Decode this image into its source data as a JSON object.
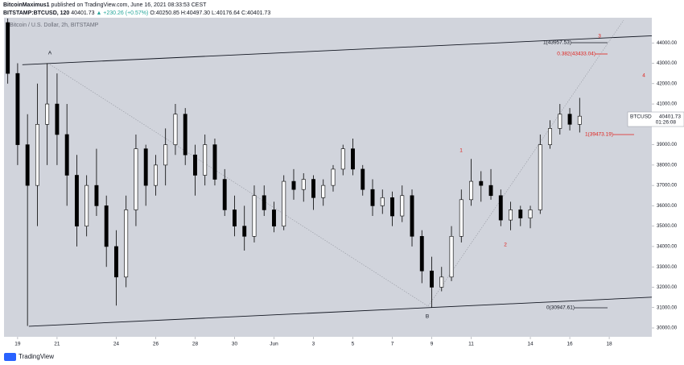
{
  "header": {
    "author": "BitcoinMaximus1",
    "published": "published on TradingView.com, June 16, 2021 08:33:53 CEST",
    "symbol": "BITSTAMP:BTCUSD, 120",
    "last": "40401.73",
    "change": "▲ +230.26 (+0.57%)",
    "open": "O:40250.85",
    "high": "H:40497.30",
    "low": "L:40176.64",
    "close": "C:40401.73"
  },
  "chart_data": {
    "type": "candlestick",
    "watermark": "Bitcoin / U.S. Dollar, 2h, BITSTAMP",
    "x": [
      -0.5,
      0,
      0.5,
      1,
      1.5,
      2,
      2.5,
      3,
      3.5,
      4,
      4.5,
      5,
      5.5,
      6,
      6.5,
      7,
      7.5,
      8,
      8.5,
      9,
      9.5,
      10,
      10.5,
      11,
      11.5,
      12,
      12.5,
      13,
      13.5,
      14,
      14.5,
      15,
      15.5,
      16,
      16.5,
      17,
      17.5,
      18,
      18.5,
      19,
      19.5,
      20,
      20.5,
      21,
      21.5,
      22,
      22.5,
      23,
      23.5,
      24,
      24.5,
      25,
      25.5,
      26,
      26.5,
      27,
      27.5,
      28,
      28.5
    ],
    "open": [
      45000,
      42500,
      39000,
      37000,
      40000,
      41000,
      39500,
      37500,
      35000,
      37000,
      36000,
      34000,
      32500,
      35800,
      38800,
      37000,
      38000,
      39000,
      40500,
      38500,
      37500,
      39000,
      37300,
      35800,
      35000,
      34500,
      36500,
      35800,
      35000,
      37200,
      36800,
      37300,
      36400,
      37000,
      37800,
      38800,
      37800,
      36800,
      36000,
      36400,
      35500,
      36500,
      34500,
      32800,
      32000,
      32500,
      34500,
      36300,
      37200,
      37000,
      36500,
      35300,
      35800,
      35400,
      35800,
      39000,
      39800,
      40500,
      40000
    ],
    "high": [
      45200,
      43000,
      40500,
      42000,
      43000,
      42500,
      41000,
      38500,
      37500,
      38800,
      36500,
      34800,
      36500,
      39500,
      39000,
      38500,
      39800,
      41000,
      40800,
      39000,
      39500,
      39300,
      37800,
      36500,
      36000,
      37000,
      37000,
      36200,
      37500,
      37800,
      37600,
      37500,
      37300,
      38000,
      39000,
      39300,
      38000,
      37300,
      36800,
      36700,
      37000,
      36800,
      34800,
      33500,
      33000,
      35000,
      36800,
      38300,
      37700,
      37800,
      36800,
      36200,
      36000,
      36000,
      39500,
      40200,
      41000,
      40800,
      41300
    ],
    "low": [
      42000,
      38000,
      30100,
      35000,
      38000,
      38000,
      36000,
      34000,
      34500,
      35500,
      33000,
      31100,
      32000,
      35000,
      36000,
      36500,
      37000,
      38500,
      38000,
      36500,
      37000,
      37000,
      35500,
      34500,
      33800,
      34200,
      35500,
      34700,
      34800,
      36300,
      36200,
      35800,
      36000,
      36700,
      37500,
      37500,
      36500,
      35500,
      35600,
      35000,
      35200,
      34000,
      32200,
      31000,
      31800,
      32300,
      34200,
      36000,
      36200,
      36300,
      35000,
      34800,
      35000,
      34900,
      35600,
      38800,
      39500,
      39700,
      39600
    ],
    "close": [
      42500,
      39000,
      37000,
      40000,
      41000,
      39500,
      37500,
      35000,
      37000,
      36000,
      34000,
      32500,
      35800,
      38800,
      37000,
      38000,
      39000,
      40500,
      38500,
      37500,
      39000,
      37300,
      35800,
      35000,
      34500,
      36500,
      35800,
      35000,
      37200,
      36800,
      37300,
      36400,
      37000,
      37800,
      38800,
      37800,
      36800,
      36000,
      36400,
      35500,
      36500,
      34500,
      32800,
      32000,
      32500,
      34500,
      36300,
      37200,
      37000,
      36500,
      35300,
      35800,
      35400,
      35800,
      39000,
      39800,
      40500,
      40000,
      40401.73
    ],
    "up_color": "#ffffff",
    "down_color": "#000000",
    "xlim": [
      -0.69,
      32.16
    ],
    "ylim": [
      29565,
      45237
    ],
    "xticks": [
      {
        "value": 0,
        "label": "19"
      },
      {
        "value": 2,
        "label": "21"
      },
      {
        "value": 5,
        "label": "24"
      },
      {
        "value": 7,
        "label": "26"
      },
      {
        "value": 9,
        "label": "28"
      },
      {
        "value": 11,
        "label": "30"
      },
      {
        "value": 13,
        "label": "Jun"
      },
      {
        "value": 15,
        "label": "3"
      },
      {
        "value": 17,
        "label": "5"
      },
      {
        "value": 19,
        "label": "7"
      },
      {
        "value": 21,
        "label": "9"
      },
      {
        "value": 23,
        "label": "11"
      },
      {
        "value": 26,
        "label": "14"
      },
      {
        "value": 28,
        "label": "16"
      },
      {
        "value": 30,
        "label": "18"
      }
    ],
    "yticks": [
      {
        "value": 30000,
        "label": "30000.00"
      },
      {
        "value": 31000,
        "label": "31000.00"
      },
      {
        "value": 32000,
        "label": "32000.00"
      },
      {
        "value": 33000,
        "label": "33000.00"
      },
      {
        "value": 34000,
        "label": "34000.00"
      },
      {
        "value": 35000,
        "label": "35000.00"
      },
      {
        "value": 36000,
        "label": "36000.00"
      },
      {
        "value": 37000,
        "label": "37000.00"
      },
      {
        "value": 38000,
        "label": "38000.00"
      },
      {
        "value": 39000,
        "label": "39000.00"
      },
      {
        "value": 40000,
        "label": "40000.00"
      },
      {
        "value": 41000,
        "label": "41000.00"
      },
      {
        "value": 42000,
        "label": "42000.00"
      },
      {
        "value": 43000,
        "label": "43000.00"
      },
      {
        "value": 44000,
        "label": "44000.00"
      }
    ],
    "trendlines": [
      {
        "x": [
          0.24,
          32.16
        ],
        "y": [
          42930,
          44350
        ]
      },
      {
        "x": [
          0.57,
          32.16
        ],
        "y": [
          30080,
          31510
        ]
      }
    ],
    "annotations": [
      {
        "text": "A",
        "color": "#131722"
      },
      {
        "text": "B",
        "color": "#131722"
      },
      {
        "text": "1",
        "color": "#e0201b"
      },
      {
        "text": "2",
        "color": "#e0201b"
      },
      {
        "text": "3",
        "color": "#e0201b"
      },
      {
        "text": "4",
        "color": "#e0201b"
      },
      {
        "text": "1(43957.53)",
        "color": "#131722"
      },
      {
        "text": "0.382(43433.04)",
        "color": "#e0201b"
      },
      {
        "text": "1(39473.19)",
        "color": "#e0201b"
      },
      {
        "text": "0(30947.61)",
        "color": "#131722"
      }
    ],
    "price_label": {
      "symbol": "BTCUSD",
      "value": "40401.73",
      "countdown": "01:26:08"
    }
  },
  "footer": {
    "brand": "TradingView"
  }
}
